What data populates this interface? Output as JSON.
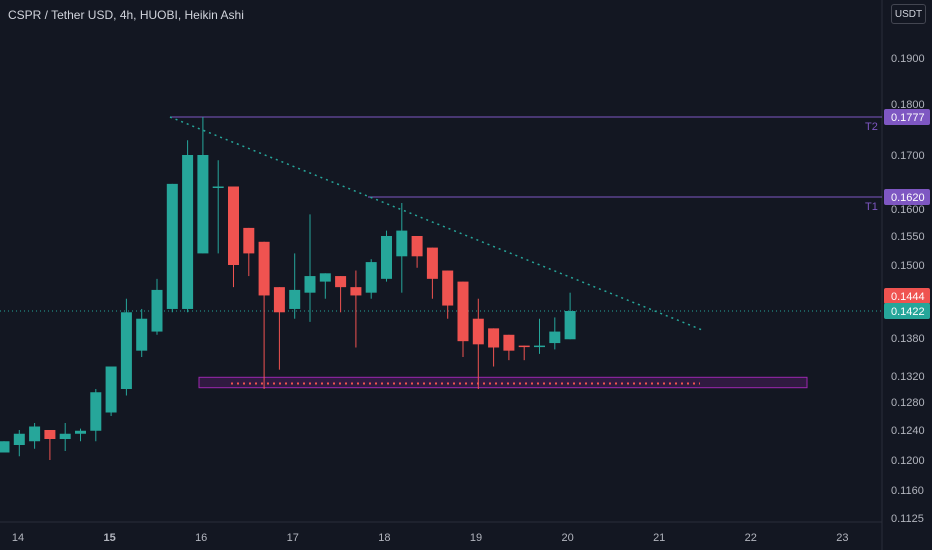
{
  "header": {
    "title": "CSPR / Tether USD, 4h, HUOBI, Heikin Ashi",
    "currency_button": "USDT"
  },
  "colors": {
    "background": "#131722",
    "bull": "#26a69a",
    "bear": "#ef5350",
    "purple": "#7e57c2",
    "box": "#9c27b0",
    "trend": "#26a69a",
    "text": "#b2b5be"
  },
  "chart_data": {
    "type": "candlestick",
    "x_ticks": [
      {
        "label": "14",
        "day": 14,
        "bold": false
      },
      {
        "label": "15",
        "day": 15,
        "bold": true
      },
      {
        "label": "16",
        "day": 16,
        "bold": false
      },
      {
        "label": "17",
        "day": 17,
        "bold": false
      },
      {
        "label": "18",
        "day": 18,
        "bold": false
      },
      {
        "label": "19",
        "day": 19,
        "bold": false
      },
      {
        "label": "20",
        "day": 20,
        "bold": false
      },
      {
        "label": "21",
        "day": 21,
        "bold": false
      },
      {
        "label": "22",
        "day": 22,
        "bold": false
      },
      {
        "label": "23",
        "day": 23,
        "bold": false
      }
    ],
    "y_ticks": [
      "0.1900",
      "0.1800",
      "0.1700",
      "0.1600",
      "0.1550",
      "0.1500",
      "0.1380",
      "0.1320",
      "0.1280",
      "0.1240",
      "0.1200",
      "0.1160",
      "0.1125"
    ],
    "candles": [
      {
        "o": 0.121,
        "h": 0.1225,
        "l": 0.121,
        "c": 0.1225
      },
      {
        "o": 0.122,
        "h": 0.124,
        "l": 0.1205,
        "c": 0.1235
      },
      {
        "o": 0.1225,
        "h": 0.125,
        "l": 0.1215,
        "c": 0.1245
      },
      {
        "o": 0.124,
        "h": 0.1235,
        "l": 0.12,
        "c": 0.1228
      },
      {
        "o": 0.1228,
        "h": 0.125,
        "l": 0.1212,
        "c": 0.1235
      },
      {
        "o": 0.1235,
        "h": 0.1242,
        "l": 0.1225,
        "c": 0.1239
      },
      {
        "o": 0.1239,
        "h": 0.13,
        "l": 0.1225,
        "c": 0.1295
      },
      {
        "o": 0.1265,
        "h": 0.1335,
        "l": 0.126,
        "c": 0.1335
      },
      {
        "o": 0.13,
        "h": 0.144,
        "l": 0.129,
        "c": 0.142
      },
      {
        "o": 0.136,
        "h": 0.1425,
        "l": 0.135,
        "c": 0.141
      },
      {
        "o": 0.139,
        "h": 0.1475,
        "l": 0.1385,
        "c": 0.1455
      },
      {
        "o": 0.1425,
        "h": 0.164,
        "l": 0.142,
        "c": 0.1645
      },
      {
        "o": 0.1425,
        "h": 0.173,
        "l": 0.142,
        "c": 0.17
      },
      {
        "o": 0.152,
        "h": 0.1777,
        "l": 0.152,
        "c": 0.17
      },
      {
        "o": 0.164,
        "h": 0.169,
        "l": 0.152,
        "c": 0.164
      },
      {
        "o": 0.164,
        "h": 0.164,
        "l": 0.146,
        "c": 0.15
      },
      {
        "o": 0.1565,
        "h": 0.1565,
        "l": 0.148,
        "c": 0.152
      },
      {
        "o": 0.154,
        "h": 0.154,
        "l": 0.13,
        "c": 0.1445
      },
      {
        "o": 0.146,
        "h": 0.146,
        "l": 0.133,
        "c": 0.142
      },
      {
        "o": 0.1425,
        "h": 0.152,
        "l": 0.141,
        "c": 0.1455
      },
      {
        "o": 0.145,
        "h": 0.159,
        "l": 0.1405,
        "c": 0.148
      },
      {
        "o": 0.147,
        "h": 0.1485,
        "l": 0.144,
        "c": 0.1485
      },
      {
        "o": 0.148,
        "h": 0.148,
        "l": 0.142,
        "c": 0.146
      },
      {
        "o": 0.146,
        "h": 0.149,
        "l": 0.1365,
        "c": 0.1445
      },
      {
        "o": 0.145,
        "h": 0.151,
        "l": 0.144,
        "c": 0.1505
      },
      {
        "o": 0.1475,
        "h": 0.156,
        "l": 0.147,
        "c": 0.155
      },
      {
        "o": 0.1515,
        "h": 0.161,
        "l": 0.145,
        "c": 0.156
      },
      {
        "o": 0.155,
        "h": 0.155,
        "l": 0.1495,
        "c": 0.1515
      },
      {
        "o": 0.153,
        "h": 0.153,
        "l": 0.144,
        "c": 0.1475
      },
      {
        "o": 0.149,
        "h": 0.149,
        "l": 0.141,
        "c": 0.143
      },
      {
        "o": 0.147,
        "h": 0.147,
        "l": 0.135,
        "c": 0.1375
      },
      {
        "o": 0.141,
        "h": 0.144,
        "l": 0.13,
        "c": 0.137
      },
      {
        "o": 0.1395,
        "h": 0.1395,
        "l": 0.1335,
        "c": 0.1365
      },
      {
        "o": 0.1385,
        "h": 0.1385,
        "l": 0.1345,
        "c": 0.136
      },
      {
        "o": 0.1368,
        "h": 0.1368,
        "l": 0.1345,
        "c": 0.1367
      },
      {
        "o": 0.1367,
        "h": 0.141,
        "l": 0.1355,
        "c": 0.1368
      },
      {
        "o": 0.1372,
        "h": 0.1412,
        "l": 0.1362,
        "c": 0.139
      },
      {
        "o": 0.1378,
        "h": 0.145,
        "l": 0.1378,
        "c": 0.1422
      }
    ],
    "levels": [
      {
        "label": "T2",
        "price": 0.1777,
        "tag": "0.1777"
      },
      {
        "label": "T1",
        "price": 0.162,
        "tag": "0.1620"
      }
    ],
    "price_tags": [
      {
        "price": 0.1444,
        "text": "0.1444",
        "color": "#ef5350"
      },
      {
        "price": 0.1422,
        "text": "0.1422",
        "color": "#26a69a"
      }
    ],
    "support_zone": {
      "top": 0.1318,
      "bottom": 0.1302
    },
    "trendline": {
      "from": {
        "price": 0.1777
      },
      "to": {
        "price": 0.1392
      }
    },
    "current_price": 0.1422
  }
}
